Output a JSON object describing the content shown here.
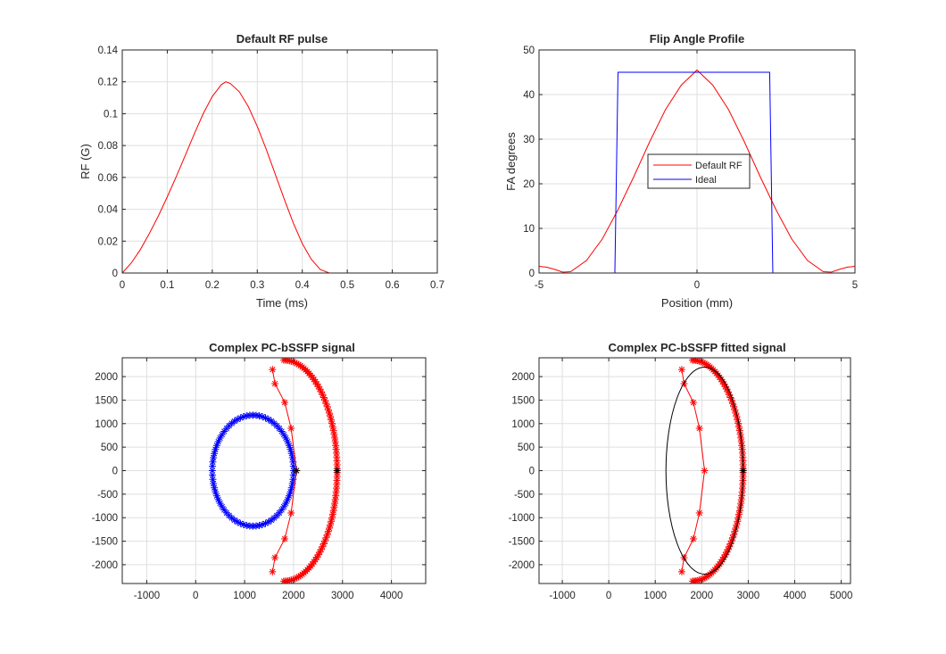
{
  "colors": {
    "red": "#ff0000",
    "blue": "#0000ff",
    "black": "#000000",
    "grid": "#dfdfdf",
    "axis": "#262626"
  },
  "chart_data": [
    {
      "id": "rf",
      "type": "line",
      "title": "Default RF pulse",
      "xlabel": "Time (ms)",
      "ylabel": "RF (G)",
      "xlim": [
        0,
        0.7
      ],
      "ylim": [
        0,
        0.14
      ],
      "xticks": [
        0,
        0.1,
        0.2,
        0.3,
        0.4,
        0.5,
        0.6,
        0.7
      ],
      "xtick_labels": [
        "0",
        "0.1",
        "0.2",
        "0.3",
        "0.4",
        "0.5",
        "0.6",
        "0.7"
      ],
      "yticks": [
        0,
        0.02,
        0.04,
        0.06,
        0.08,
        0.1,
        0.12,
        0.14
      ],
      "ytick_labels": [
        "0",
        "0.02",
        "0.04",
        "0.06",
        "0.08",
        "0.1",
        "0.12",
        "0.14"
      ],
      "grid": true,
      "series": [
        {
          "name": "RF",
          "color": "#ff0000",
          "x": [
            0,
            0.02,
            0.04,
            0.06,
            0.08,
            0.1,
            0.12,
            0.14,
            0.16,
            0.18,
            0.2,
            0.22,
            0.23,
            0.24,
            0.26,
            0.28,
            0.3,
            0.32,
            0.34,
            0.36,
            0.38,
            0.4,
            0.42,
            0.44,
            0.46,
            0.5,
            0.6,
            0.69
          ],
          "y": [
            0,
            0.0063,
            0.0146,
            0.0247,
            0.0357,
            0.0478,
            0.0605,
            0.0738,
            0.0873,
            0.1001,
            0.1108,
            0.1182,
            0.12,
            0.119,
            0.1138,
            0.1045,
            0.092,
            0.0776,
            0.062,
            0.0463,
            0.0314,
            0.0185,
            0.0086,
            0.0022,
            0,
            0,
            0,
            0
          ]
        }
      ]
    },
    {
      "id": "fa",
      "type": "line",
      "title": "Flip Angle Profile",
      "xlabel": "Position (mm)",
      "ylabel": "FA degrees",
      "xlim": [
        -5,
        5
      ],
      "ylim": [
        0,
        50
      ],
      "xticks": [
        -5,
        0,
        5
      ],
      "xtick_labels": [
        "-5",
        "0",
        "5"
      ],
      "yticks": [
        0,
        10,
        20,
        30,
        40,
        50
      ],
      "ytick_labels": [
        "0",
        "10",
        "20",
        "30",
        "40",
        "50"
      ],
      "grid": true,
      "legend": {
        "location": "center-left",
        "entries": [
          "Default RF",
          "Ideal"
        ]
      },
      "series": [
        {
          "name": "Default RF",
          "color": "#ff0000",
          "x": [
            -5,
            -4.75,
            -4.5,
            -4.25,
            -4,
            -3.5,
            -3,
            -2.5,
            -2,
            -1.5,
            -1,
            -0.5,
            0,
            0.5,
            1,
            1.5,
            2,
            2.5,
            3,
            3.5,
            4,
            4.25,
            4.5,
            4.75,
            5
          ],
          "y": [
            1.5,
            1.3,
            0.8,
            0.2,
            0.3,
            2.8,
            7.6,
            14.2,
            21.6,
            29.4,
            36.6,
            42.1,
            45.5,
            42.1,
            36.6,
            29.4,
            21.6,
            14.2,
            7.6,
            2.8,
            0.3,
            0.2,
            0.8,
            1.3,
            1.5
          ]
        },
        {
          "name": "Ideal",
          "color": "#0000ff",
          "x": [
            -5,
            -2.6,
            -2.5,
            2.3,
            2.4,
            5
          ],
          "y": [
            0,
            0,
            45,
            45,
            0,
            0
          ]
        }
      ]
    },
    {
      "id": "pc",
      "type": "scatter",
      "title": "Complex PC-bSSFP signal",
      "xlabel": "",
      "ylabel": "",
      "xlim": [
        -1500,
        4700
      ],
      "ylim": [
        -2400,
        2400
      ],
      "xticks": [
        -1000,
        0,
        1000,
        2000,
        3000,
        4000
      ],
      "xtick_labels": [
        "-1000",
        "0",
        "1000",
        "2000",
        "3000",
        "4000"
      ],
      "yticks": [
        -2000,
        -1500,
        -1000,
        -500,
        0,
        500,
        1000,
        1500,
        2000
      ],
      "ytick_labels": [
        "-2000",
        "-1500",
        "-1000",
        "-500",
        "0",
        "500",
        "1000",
        "1500",
        "2000"
      ],
      "grid": true,
      "series": [
        {
          "name": "blue-circle",
          "color": "#0000ff",
          "marker": "*",
          "shape": "ellipse",
          "center": [
            1170,
            0
          ],
          "radius": [
            830,
            1180
          ],
          "n": 80
        },
        {
          "name": "red-outer-arc",
          "color": "#ff0000",
          "marker": "*",
          "shape": "arc",
          "center": [
            1800,
            0
          ],
          "radius": [
            1090,
            2350
          ],
          "n": 90
        },
        {
          "name": "red-inner-line",
          "color": "#ff0000",
          "marker": "*",
          "line": true,
          "x": [
            1570,
            1620,
            1820,
            1950,
            2060,
            1950,
            1820,
            1620,
            1570
          ],
          "y": [
            2150,
            1850,
            1450,
            900,
            0,
            -900,
            -1450,
            -1850,
            -2150
          ]
        },
        {
          "name": "black-points",
          "color": "#000000",
          "marker": "*",
          "x": [
            2060,
            2890
          ],
          "y": [
            0,
            0
          ]
        }
      ]
    },
    {
      "id": "pcfit",
      "type": "scatter",
      "title": "Complex PC-bSSFP fitted signal",
      "xlabel": "",
      "ylabel": "",
      "xlim": [
        -1500,
        5200
      ],
      "ylim": [
        -2400,
        2400
      ],
      "xticks": [
        -1000,
        0,
        1000,
        2000,
        3000,
        4000,
        5000
      ],
      "xtick_labels": [
        "-1000",
        "0",
        "1000",
        "2000",
        "3000",
        "4000",
        "5000"
      ],
      "yticks": [
        -2000,
        -1500,
        -1000,
        -500,
        0,
        500,
        1000,
        1500,
        2000
      ],
      "ytick_labels": [
        "-2000",
        "-1500",
        "-1000",
        "-500",
        "0",
        "500",
        "1000",
        "1500",
        "2000"
      ],
      "grid": true,
      "series": [
        {
          "name": "red-outer-arc",
          "color": "#ff0000",
          "marker": "*",
          "shape": "arc",
          "center": [
            1800,
            0
          ],
          "radius": [
            1090,
            2350
          ],
          "n": 90
        },
        {
          "name": "red-inner-line",
          "color": "#ff0000",
          "marker": "*",
          "line": true,
          "x": [
            1570,
            1620,
            1820,
            1950,
            2060,
            1950,
            1820,
            1620,
            1570
          ],
          "y": [
            2150,
            1850,
            1450,
            900,
            0,
            -900,
            -1450,
            -1850,
            -2150
          ]
        },
        {
          "name": "black-fitted-ellipse",
          "color": "#000000",
          "shape": "ellipse-line",
          "center": [
            2060,
            0
          ],
          "radius": [
            830,
            2200
          ]
        },
        {
          "name": "black-points",
          "color": "#000000",
          "marker": "*",
          "x": [
            2890
          ],
          "y": [
            0
          ]
        }
      ]
    }
  ]
}
